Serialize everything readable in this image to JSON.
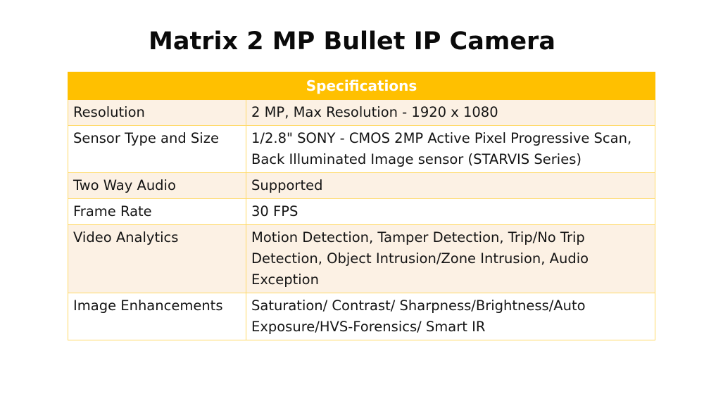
{
  "page": {
    "title": "Matrix 2 MP Bullet IP Camera"
  },
  "table": {
    "header": "Specifications",
    "rows": [
      {
        "label": "Resolution",
        "value": "2 MP, Max Resolution - 1920 x 1080"
      },
      {
        "label": "Sensor Type and Size",
        "value": "1/2.8\" SONY - CMOS 2MP Active Pixel Progressive Scan, Back Illuminated Image sensor (STARVIS Series)"
      },
      {
        "label": "Two Way Audio",
        "value": "Supported"
      },
      {
        "label": "Frame Rate",
        "value": "30 FPS"
      },
      {
        "label": "Video Analytics",
        "value": "Motion Detection, Tamper Detection, Trip/No Trip Detection, Object Intrusion/Zone Intrusion, Audio Exception"
      },
      {
        "label": "Image Enhancements",
        "value": "Saturation/ Contrast/ Sharpness/Brightness/Auto Exposure/HVS-Forensics/ Smart IR"
      }
    ]
  },
  "colors": {
    "header_fill": "#ffc000",
    "header_text": "#ffffff",
    "band_fill": "#fcf1e4",
    "border": "#ffd966"
  }
}
